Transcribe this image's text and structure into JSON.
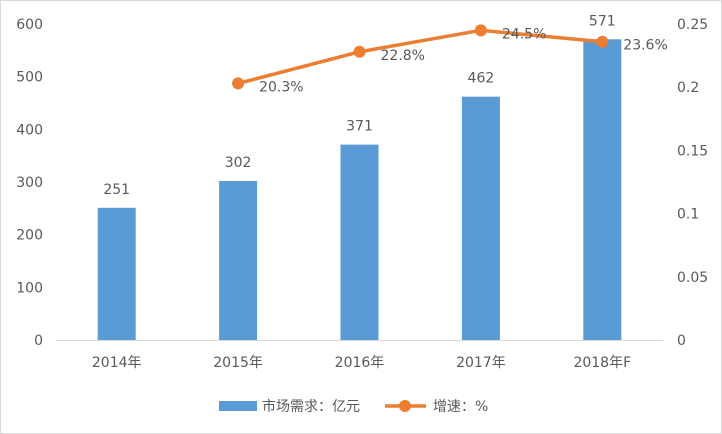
{
  "chart_data": {
    "type": "bar+line",
    "categories": [
      "2014年",
      "2015年",
      "2016年",
      "2017年",
      "2018年F"
    ],
    "series": [
      {
        "name": "市场需求：亿元",
        "type": "bar",
        "axis": "left",
        "color": "#5b9bd5",
        "values": [
          251,
          302,
          371,
          462,
          571
        ],
        "labels": [
          "251",
          "302",
          "371",
          "462",
          "571"
        ]
      },
      {
        "name": "增速：%",
        "type": "line",
        "axis": "right",
        "color": "#ed7d31",
        "values": [
          null,
          0.203,
          0.228,
          0.245,
          0.236
        ],
        "labels": [
          "",
          "20.3%",
          "22.8%",
          "24.5%",
          "23.6%"
        ]
      }
    ],
    "y_left": {
      "range": [
        0,
        600
      ],
      "ticks": [
        "0",
        "100",
        "200",
        "300",
        "400",
        "500",
        "600"
      ],
      "values": [
        0,
        100,
        200,
        300,
        400,
        500,
        600
      ]
    },
    "y_right": {
      "range": [
        0,
        0.25
      ],
      "ticks": [
        "0",
        "0.05",
        "0.1",
        "0.15",
        "0.2",
        "0.25"
      ],
      "values": [
        0,
        0.05,
        0.1,
        0.15,
        0.2,
        0.25
      ]
    },
    "grid": false,
    "legend_position": "bottom"
  }
}
